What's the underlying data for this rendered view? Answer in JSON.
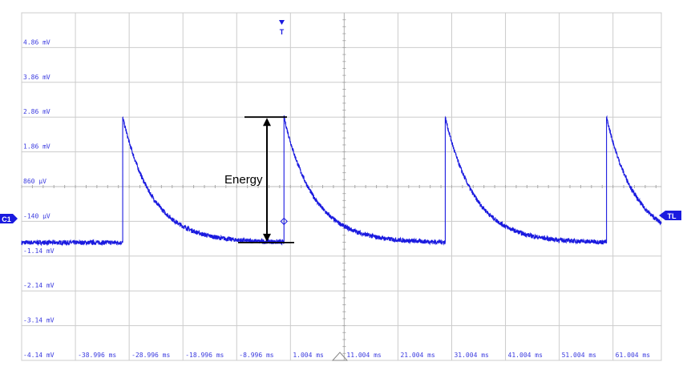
{
  "chart_data": {
    "type": "line",
    "title": "",
    "xlabel": "",
    "ylabel": "",
    "x_unit": "ms",
    "y_unit": "mV",
    "xlim": [
      -49.0,
      70.0
    ],
    "ylim": [
      -4.14,
      5.86
    ],
    "grid": true,
    "y_tick_labels": [
      {
        "value": 4.86,
        "label": "4.86 mV"
      },
      {
        "value": 3.86,
        "label": "3.86 mV"
      },
      {
        "value": 2.86,
        "label": "2.86 mV"
      },
      {
        "value": 1.86,
        "label": "1.86 mV"
      },
      {
        "value": 0.86,
        "label": "860 µV"
      },
      {
        "value": -0.14,
        "label": "-140 µV"
      },
      {
        "value": -1.14,
        "label": "-1.14 mV"
      },
      {
        "value": -2.14,
        "label": "-2.14 mV"
      },
      {
        "value": -3.14,
        "label": "-3.14 mV"
      },
      {
        "value": -4.14,
        "label": "-4.14 mV"
      }
    ],
    "x_tick_labels": [
      {
        "value": -38.996,
        "label": "-38.996 ms"
      },
      {
        "value": -28.996,
        "label": "-28.996 ms"
      },
      {
        "value": -18.996,
        "label": "-18.996 ms"
      },
      {
        "value": -8.996,
        "label": "-8.996 ms"
      },
      {
        "value": 1.004,
        "label": "1.004 ms"
      },
      {
        "value": 11.004,
        "label": "11.004 ms"
      },
      {
        "value": 21.004,
        "label": "21.004 ms"
      },
      {
        "value": 31.004,
        "label": "31.004 ms"
      },
      {
        "value": 41.004,
        "label": "41.004 ms"
      },
      {
        "value": 51.004,
        "label": "51.004 ms"
      },
      {
        "value": 61.004,
        "label": "61.004 ms"
      }
    ],
    "series": [
      {
        "color": "#1a1adf",
        "baseline_mV": -0.75,
        "pulse_period_ms": 30,
        "pulses": [
          {
            "t_ms": -30.2,
            "peak_mV": 2.85
          },
          {
            "t_ms": -0.2,
            "peak_mV": 2.86
          },
          {
            "t_ms": 29.8,
            "peak_mV": 2.85
          },
          {
            "t_ms": 59.8,
            "peak_mV": 2.85
          }
        ],
        "decay_time_constant_ms": 5.5
      }
    ],
    "annotations": {
      "energy_label": "Energy",
      "energy_top_mV": 2.86,
      "energy_bottom_mV": -0.75
    },
    "markers": {
      "trigger": "T",
      "channel": "C1",
      "trigger_level": "TL"
    },
    "colors": {
      "trace": "#1a1adf",
      "grid": "#cccccc",
      "labels": "#3a3adf",
      "marker": "#1a1adf"
    }
  }
}
